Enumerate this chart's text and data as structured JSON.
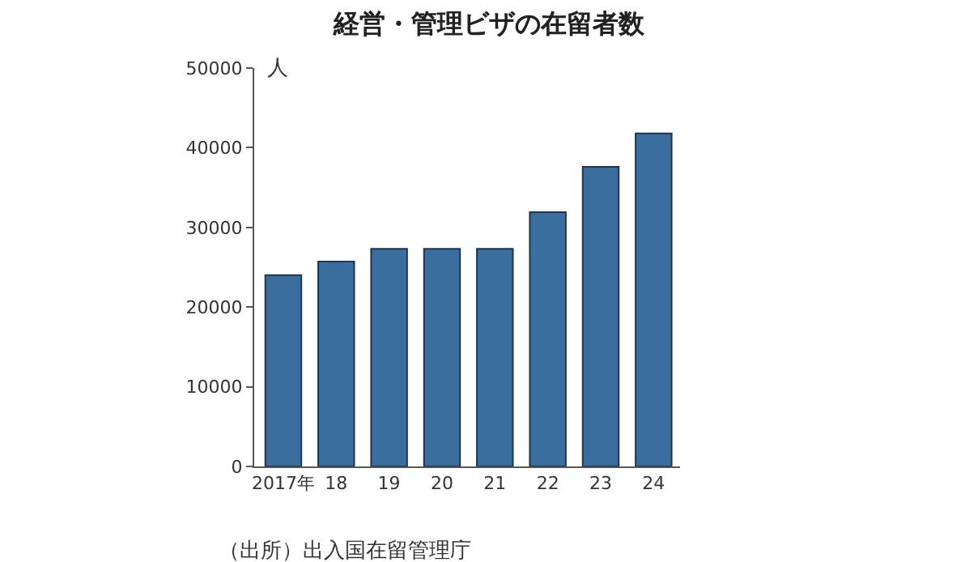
{
  "chart_data": {
    "type": "bar",
    "title": "経営・管理ビザの在留者数",
    "categories": [
      "2017年",
      "18",
      "19",
      "20",
      "21",
      "22",
      "23",
      "24"
    ],
    "values": [
      24000,
      25700,
      27300,
      27300,
      27300,
      31900,
      37600,
      41800
    ],
    "color": "#3a6e9e",
    "ylim": [
      0,
      50000
    ],
    "yticks": [
      0,
      10000,
      20000,
      30000,
      40000,
      50000
    ],
    "annotations": [
      "人",
      "（出所）出入国在留管理庁"
    ]
  }
}
